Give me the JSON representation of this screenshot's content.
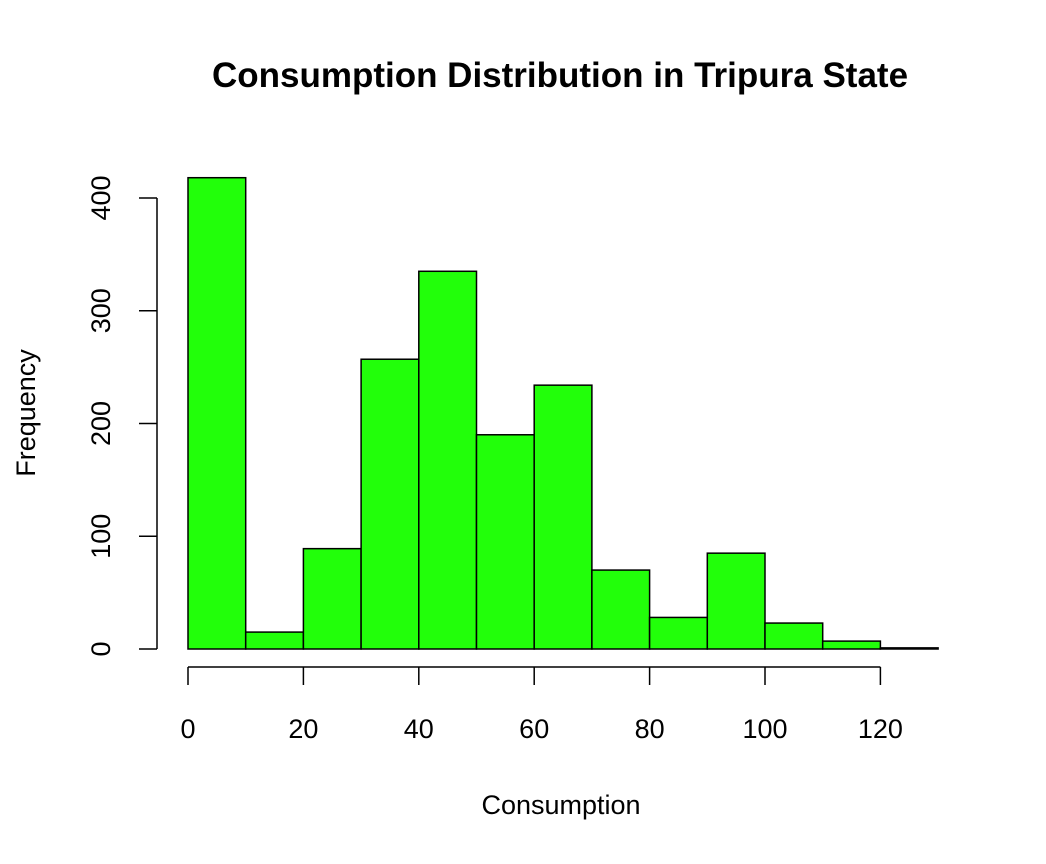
{
  "chart_data": {
    "type": "bar",
    "title": "Consumption Distribution in Tripura State",
    "xlabel": "Consumption",
    "ylabel": "Frequency",
    "bin_edges": [
      0,
      10,
      20,
      30,
      40,
      50,
      60,
      70,
      80,
      90,
      100,
      110,
      120,
      130
    ],
    "values": [
      418,
      15,
      89,
      257,
      335,
      190,
      234,
      70,
      28,
      85,
      23,
      7,
      1
    ],
    "xlim": [
      0,
      130
    ],
    "ylim": [
      0,
      430
    ],
    "x_ticks": [
      "0",
      "20",
      "40",
      "60",
      "80",
      "100",
      "120"
    ],
    "y_ticks": [
      "0",
      "100",
      "200",
      "300",
      "400"
    ],
    "bar_color": "#22ff0a",
    "grid": false
  }
}
